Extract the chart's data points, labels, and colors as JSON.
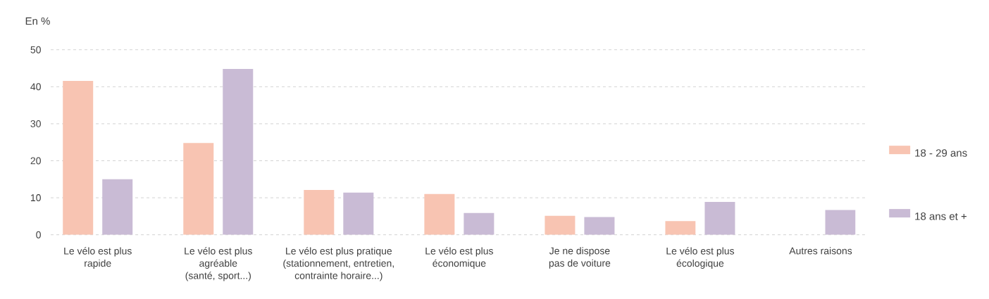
{
  "chart_data": {
    "type": "bar",
    "ylabel": "En %",
    "categories": [
      "Le vélo est plus rapide",
      "Le vélo est plus agréable (santé, sport...)",
      "Le vélo est plus pratique (stationnement, entretien, contrainte horaire...)",
      "Le vélo est plus économique",
      "Je ne dispose pas de voiture",
      "Le vélo est plus écologique",
      "Autres raisons"
    ],
    "series": [
      {
        "name": "18 - 29 ans",
        "color": "#f8c4b2",
        "values": [
          41.6,
          24.8,
          12.1,
          11.0,
          5.1,
          3.7,
          null
        ]
      },
      {
        "name": "18 ans et +",
        "color": "#c9bbd5",
        "values": [
          15.0,
          44.8,
          11.4,
          5.9,
          4.8,
          8.9,
          6.7
        ]
      }
    ],
    "ylim": [
      0,
      50
    ],
    "yticks": [
      0,
      10,
      20,
      30,
      40,
      50
    ],
    "grid": "y",
    "legend": "right"
  }
}
